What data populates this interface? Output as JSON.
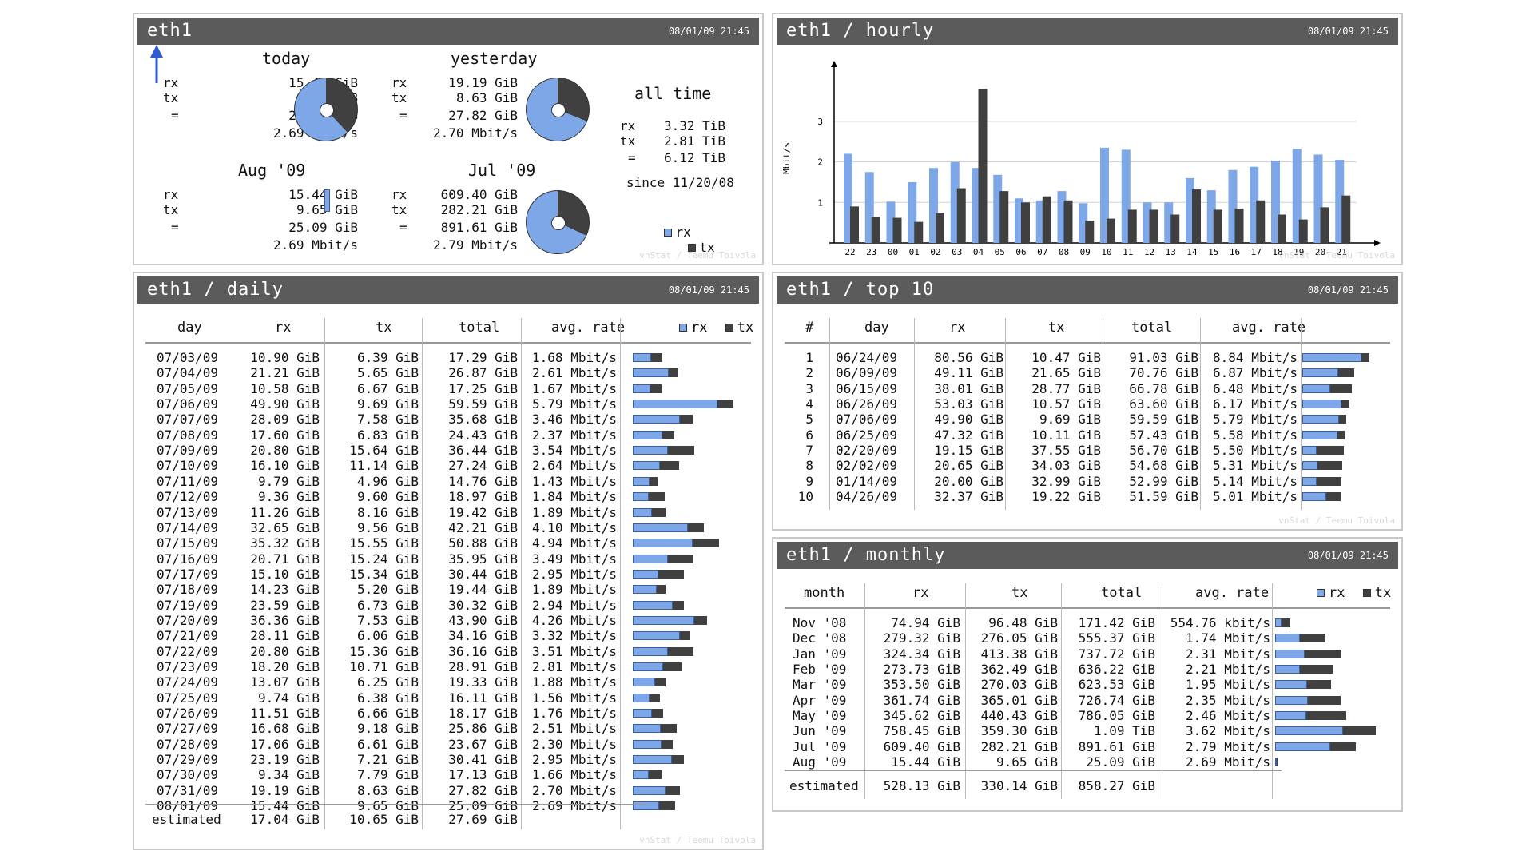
{
  "colors": {
    "rx": "#7ea7e8",
    "tx": "#404040",
    "header": "#5b5b5b"
  },
  "footer": "vnStat / Teemu Toivola",
  "timestamp": "08/01/09 21:45",
  "summary": {
    "title": "eth1",
    "today": {
      "label": "today",
      "rx": "15.44 GiB",
      "tx": "9.65 GiB",
      "total": "25.09 GiB",
      "rate": "2.69 Mbit/s",
      "tx_share": 0.38
    },
    "yesterday": {
      "label": "yesterday",
      "rx": "19.19 GiB",
      "tx": "8.63 GiB",
      "total": "27.82 GiB",
      "rate": "2.70 Mbit/s",
      "tx_share": 0.31
    },
    "month": {
      "label": "Aug '09",
      "rx": "15.44 GiB",
      "tx": "9.65 GiB",
      "total": "25.09 GiB",
      "rate": "2.69 Mbit/s",
      "tx_share": 0.38
    },
    "prev_month": {
      "label": "Jul '09",
      "rx": "609.40 GiB",
      "tx": "282.21 GiB",
      "total": "891.61 GiB",
      "rate": "2.79 Mbit/s",
      "tx_share": 0.32
    },
    "alltime": {
      "label": "all time",
      "rx": "3.32 TiB",
      "tx": "2.81 TiB",
      "total": "6.12 TiB",
      "since": "since 11/20/08"
    },
    "labels": {
      "rx": "rx",
      "tx": "tx",
      "eq": "="
    },
    "legend": {
      "rx": "rx",
      "tx": "tx"
    }
  },
  "hourly": {
    "title": "eth1 / hourly",
    "chart_data": {
      "type": "bar",
      "ylabel": "Mbit/s",
      "ylim": [
        0,
        4
      ],
      "yticks": [
        1,
        2,
        3
      ],
      "categories": [
        "22",
        "23",
        "00",
        "01",
        "02",
        "03",
        "04",
        "05",
        "06",
        "07",
        "08",
        "09",
        "10",
        "11",
        "12",
        "13",
        "14",
        "15",
        "16",
        "17",
        "18",
        "19",
        "20",
        "21"
      ],
      "series": [
        {
          "name": "rx",
          "values": [
            2.2,
            1.75,
            1.02,
            1.5,
            1.85,
            2.0,
            1.85,
            1.68,
            1.1,
            1.05,
            1.28,
            0.98,
            2.35,
            2.3,
            1.0,
            1.0,
            1.6,
            1.3,
            1.8,
            1.88,
            2.03,
            2.32,
            2.18,
            2.05
          ]
        },
        {
          "name": "tx",
          "values": [
            0.9,
            0.65,
            0.62,
            0.52,
            0.75,
            1.35,
            3.8,
            1.28,
            1.0,
            1.15,
            1.05,
            0.55,
            0.6,
            0.82,
            0.82,
            0.7,
            1.32,
            0.82,
            0.85,
            1.05,
            0.7,
            0.58,
            0.88,
            1.17
          ]
        }
      ]
    }
  },
  "daily": {
    "title": "eth1 / daily",
    "headers": {
      "day": "day",
      "rx": "rx",
      "tx": "tx",
      "total": "total",
      "rate": "avg. rate"
    },
    "legend": {
      "rx": "rx",
      "tx": "tx"
    },
    "rows": [
      {
        "day": "07/03/09",
        "rx": "10.90 GiB",
        "tx": "6.39 GiB",
        "total": "17.29 GiB",
        "rate": "1.68 Mbit/s",
        "rxv": 10.9,
        "txv": 6.39
      },
      {
        "day": "07/04/09",
        "rx": "21.21 GiB",
        "tx": "5.65 GiB",
        "total": "26.87 GiB",
        "rate": "2.61 Mbit/s",
        "rxv": 21.21,
        "txv": 5.65
      },
      {
        "day": "07/05/09",
        "rx": "10.58 GiB",
        "tx": "6.67 GiB",
        "total": "17.25 GiB",
        "rate": "1.67 Mbit/s",
        "rxv": 10.58,
        "txv": 6.67
      },
      {
        "day": "07/06/09",
        "rx": "49.90 GiB",
        "tx": "9.69 GiB",
        "total": "59.59 GiB",
        "rate": "5.79 Mbit/s",
        "rxv": 49.9,
        "txv": 9.69
      },
      {
        "day": "07/07/09",
        "rx": "28.09 GiB",
        "tx": "7.58 GiB",
        "total": "35.68 GiB",
        "rate": "3.46 Mbit/s",
        "rxv": 28.09,
        "txv": 7.58
      },
      {
        "day": "07/08/09",
        "rx": "17.60 GiB",
        "tx": "6.83 GiB",
        "total": "24.43 GiB",
        "rate": "2.37 Mbit/s",
        "rxv": 17.6,
        "txv": 6.83
      },
      {
        "day": "07/09/09",
        "rx": "20.80 GiB",
        "tx": "15.64 GiB",
        "total": "36.44 GiB",
        "rate": "3.54 Mbit/s",
        "rxv": 20.8,
        "txv": 15.64
      },
      {
        "day": "07/10/09",
        "rx": "16.10 GiB",
        "tx": "11.14 GiB",
        "total": "27.24 GiB",
        "rate": "2.64 Mbit/s",
        "rxv": 16.1,
        "txv": 11.14
      },
      {
        "day": "07/11/09",
        "rx": "9.79 GiB",
        "tx": "4.96 GiB",
        "total": "14.76 GiB",
        "rate": "1.43 Mbit/s",
        "rxv": 9.79,
        "txv": 4.96
      },
      {
        "day": "07/12/09",
        "rx": "9.36 GiB",
        "tx": "9.60 GiB",
        "total": "18.97 GiB",
        "rate": "1.84 Mbit/s",
        "rxv": 9.36,
        "txv": 9.6
      },
      {
        "day": "07/13/09",
        "rx": "11.26 GiB",
        "tx": "8.16 GiB",
        "total": "19.42 GiB",
        "rate": "1.89 Mbit/s",
        "rxv": 11.26,
        "txv": 8.16
      },
      {
        "day": "07/14/09",
        "rx": "32.65 GiB",
        "tx": "9.56 GiB",
        "total": "42.21 GiB",
        "rate": "4.10 Mbit/s",
        "rxv": 32.65,
        "txv": 9.56
      },
      {
        "day": "07/15/09",
        "rx": "35.32 GiB",
        "tx": "15.55 GiB",
        "total": "50.88 GiB",
        "rate": "4.94 Mbit/s",
        "rxv": 35.32,
        "txv": 15.55
      },
      {
        "day": "07/16/09",
        "rx": "20.71 GiB",
        "tx": "15.24 GiB",
        "total": "35.95 GiB",
        "rate": "3.49 Mbit/s",
        "rxv": 20.71,
        "txv": 15.24
      },
      {
        "day": "07/17/09",
        "rx": "15.10 GiB",
        "tx": "15.34 GiB",
        "total": "30.44 GiB",
        "rate": "2.95 Mbit/s",
        "rxv": 15.1,
        "txv": 15.34
      },
      {
        "day": "07/18/09",
        "rx": "14.23 GiB",
        "tx": "5.20 GiB",
        "total": "19.44 GiB",
        "rate": "1.89 Mbit/s",
        "rxv": 14.23,
        "txv": 5.2
      },
      {
        "day": "07/19/09",
        "rx": "23.59 GiB",
        "tx": "6.73 GiB",
        "total": "30.32 GiB",
        "rate": "2.94 Mbit/s",
        "rxv": 23.59,
        "txv": 6.73
      },
      {
        "day": "07/20/09",
        "rx": "36.36 GiB",
        "tx": "7.53 GiB",
        "total": "43.90 GiB",
        "rate": "4.26 Mbit/s",
        "rxv": 36.36,
        "txv": 7.53
      },
      {
        "day": "07/21/09",
        "rx": "28.11 GiB",
        "tx": "6.06 GiB",
        "total": "34.16 GiB",
        "rate": "3.32 Mbit/s",
        "rxv": 28.11,
        "txv": 6.06
      },
      {
        "day": "07/22/09",
        "rx": "20.80 GiB",
        "tx": "15.36 GiB",
        "total": "36.16 GiB",
        "rate": "3.51 Mbit/s",
        "rxv": 20.8,
        "txv": 15.36
      },
      {
        "day": "07/23/09",
        "rx": "18.20 GiB",
        "tx": "10.71 GiB",
        "total": "28.91 GiB",
        "rate": "2.81 Mbit/s",
        "rxv": 18.2,
        "txv": 10.71
      },
      {
        "day": "07/24/09",
        "rx": "13.07 GiB",
        "tx": "6.25 GiB",
        "total": "19.33 GiB",
        "rate": "1.88 Mbit/s",
        "rxv": 13.07,
        "txv": 6.25
      },
      {
        "day": "07/25/09",
        "rx": "9.74 GiB",
        "tx": "6.38 GiB",
        "total": "16.11 GiB",
        "rate": "1.56 Mbit/s",
        "rxv": 9.74,
        "txv": 6.38
      },
      {
        "day": "07/26/09",
        "rx": "11.51 GiB",
        "tx": "6.66 GiB",
        "total": "18.17 GiB",
        "rate": "1.76 Mbit/s",
        "rxv": 11.51,
        "txv": 6.66
      },
      {
        "day": "07/27/09",
        "rx": "16.68 GiB",
        "tx": "9.18 GiB",
        "total": "25.86 GiB",
        "rate": "2.51 Mbit/s",
        "rxv": 16.68,
        "txv": 9.18
      },
      {
        "day": "07/28/09",
        "rx": "17.06 GiB",
        "tx": "6.61 GiB",
        "total": "23.67 GiB",
        "rate": "2.30 Mbit/s",
        "rxv": 17.06,
        "txv": 6.61
      },
      {
        "day": "07/29/09",
        "rx": "23.19 GiB",
        "tx": "7.21 GiB",
        "total": "30.41 GiB",
        "rate": "2.95 Mbit/s",
        "rxv": 23.19,
        "txv": 7.21
      },
      {
        "day": "07/30/09",
        "rx": "9.34 GiB",
        "tx": "7.79 GiB",
        "total": "17.13 GiB",
        "rate": "1.66 Mbit/s",
        "rxv": 9.34,
        "txv": 7.79
      },
      {
        "day": "07/31/09",
        "rx": "19.19 GiB",
        "tx": "8.63 GiB",
        "total": "27.82 GiB",
        "rate": "2.70 Mbit/s",
        "rxv": 19.19,
        "txv": 8.63
      },
      {
        "day": "08/01/09",
        "rx": "15.44 GiB",
        "tx": "9.65 GiB",
        "total": "25.09 GiB",
        "rate": "2.69 Mbit/s",
        "rxv": 15.44,
        "txv": 9.65
      }
    ],
    "estimated": {
      "label": "estimated",
      "rx": "17.04 GiB",
      "tx": "10.65 GiB",
      "total": "27.69 GiB"
    }
  },
  "top10": {
    "title": "eth1 / top 10",
    "headers": {
      "num": "#",
      "day": "day",
      "rx": "rx",
      "tx": "tx",
      "total": "total",
      "rate": "avg. rate"
    },
    "rows": [
      {
        "num": "1",
        "day": "06/24/09",
        "rx": "80.56 GiB",
        "tx": "10.47 GiB",
        "total": "91.03 GiB",
        "rate": "8.84 Mbit/s",
        "rxv": 80.56,
        "txv": 10.47
      },
      {
        "num": "2",
        "day": "06/09/09",
        "rx": "49.11 GiB",
        "tx": "21.65 GiB",
        "total": "70.76 GiB",
        "rate": "6.87 Mbit/s",
        "rxv": 49.11,
        "txv": 21.65
      },
      {
        "num": "3",
        "day": "06/15/09",
        "rx": "38.01 GiB",
        "tx": "28.77 GiB",
        "total": "66.78 GiB",
        "rate": "6.48 Mbit/s",
        "rxv": 38.01,
        "txv": 28.77
      },
      {
        "num": "4",
        "day": "06/26/09",
        "rx": "53.03 GiB",
        "tx": "10.57 GiB",
        "total": "63.60 GiB",
        "rate": "6.17 Mbit/s",
        "rxv": 53.03,
        "txv": 10.57
      },
      {
        "num": "5",
        "day": "07/06/09",
        "rx": "49.90 GiB",
        "tx": "9.69 GiB",
        "total": "59.59 GiB",
        "rate": "5.79 Mbit/s",
        "rxv": 49.9,
        "txv": 9.69
      },
      {
        "num": "6",
        "day": "06/25/09",
        "rx": "47.32 GiB",
        "tx": "10.11 GiB",
        "total": "57.43 GiB",
        "rate": "5.58 Mbit/s",
        "rxv": 47.32,
        "txv": 10.11
      },
      {
        "num": "7",
        "day": "02/20/09",
        "rx": "19.15 GiB",
        "tx": "37.55 GiB",
        "total": "56.70 GiB",
        "rate": "5.50 Mbit/s",
        "rxv": 19.15,
        "txv": 37.55
      },
      {
        "num": "8",
        "day": "02/02/09",
        "rx": "20.65 GiB",
        "tx": "34.03 GiB",
        "total": "54.68 GiB",
        "rate": "5.31 Mbit/s",
        "rxv": 20.65,
        "txv": 34.03
      },
      {
        "num": "9",
        "day": "01/14/09",
        "rx": "20.00 GiB",
        "tx": "32.99 GiB",
        "total": "52.99 GiB",
        "rate": "5.14 Mbit/s",
        "rxv": 20.0,
        "txv": 32.99
      },
      {
        "num": "10",
        "day": "04/26/09",
        "rx": "32.37 GiB",
        "tx": "19.22 GiB",
        "total": "51.59 GiB",
        "rate": "5.01 Mbit/s",
        "rxv": 32.37,
        "txv": 19.22
      }
    ]
  },
  "monthly": {
    "title": "eth1 / monthly",
    "headers": {
      "month": "month",
      "rx": "rx",
      "tx": "tx",
      "total": "total",
      "rate": "avg. rate"
    },
    "legend": {
      "rx": "rx",
      "tx": "tx"
    },
    "rows": [
      {
        "month": "Nov '08",
        "rx": "74.94 GiB",
        "tx": "96.48 GiB",
        "total": "171.42 GiB",
        "rate": "554.76 kbit/s",
        "rxv": 74.94,
        "txv": 96.48
      },
      {
        "month": "Dec '08",
        "rx": "279.32 GiB",
        "tx": "276.05 GiB",
        "total": "555.37 GiB",
        "rate": "1.74 Mbit/s",
        "rxv": 279.32,
        "txv": 276.05
      },
      {
        "month": "Jan '09",
        "rx": "324.34 GiB",
        "tx": "413.38 GiB",
        "total": "737.72 GiB",
        "rate": "2.31 Mbit/s",
        "rxv": 324.34,
        "txv": 413.38
      },
      {
        "month": "Feb '09",
        "rx": "273.73 GiB",
        "tx": "362.49 GiB",
        "total": "636.22 GiB",
        "rate": "2.21 Mbit/s",
        "rxv": 273.73,
        "txv": 362.49
      },
      {
        "month": "Mar '09",
        "rx": "353.50 GiB",
        "tx": "270.03 GiB",
        "total": "623.53 GiB",
        "rate": "1.95 Mbit/s",
        "rxv": 353.5,
        "txv": 270.03
      },
      {
        "month": "Apr '09",
        "rx": "361.74 GiB",
        "tx": "365.01 GiB",
        "total": "726.74 GiB",
        "rate": "2.35 Mbit/s",
        "rxv": 361.74,
        "txv": 365.01
      },
      {
        "month": "May '09",
        "rx": "345.62 GiB",
        "tx": "440.43 GiB",
        "total": "786.05 GiB",
        "rate": "2.46 Mbit/s",
        "rxv": 345.62,
        "txv": 440.43
      },
      {
        "month": "Jun '09",
        "rx": "758.45 GiB",
        "tx": "359.30 GiB",
        "total": "1.09 TiB",
        "rate": "3.62 Mbit/s",
        "rxv": 758.45,
        "txv": 359.3
      },
      {
        "month": "Jul '09",
        "rx": "609.40 GiB",
        "tx": "282.21 GiB",
        "total": "891.61 GiB",
        "rate": "2.79 Mbit/s",
        "rxv": 609.4,
        "txv": 282.21
      },
      {
        "month": "Aug '09",
        "rx": "15.44 GiB",
        "tx": "9.65 GiB",
        "total": "25.09 GiB",
        "rate": "2.69 Mbit/s",
        "rxv": 15.44,
        "txv": 9.65
      }
    ],
    "estimated": {
      "label": "estimated",
      "rx": "528.13 GiB",
      "tx": "330.14 GiB",
      "total": "858.27 GiB"
    }
  }
}
